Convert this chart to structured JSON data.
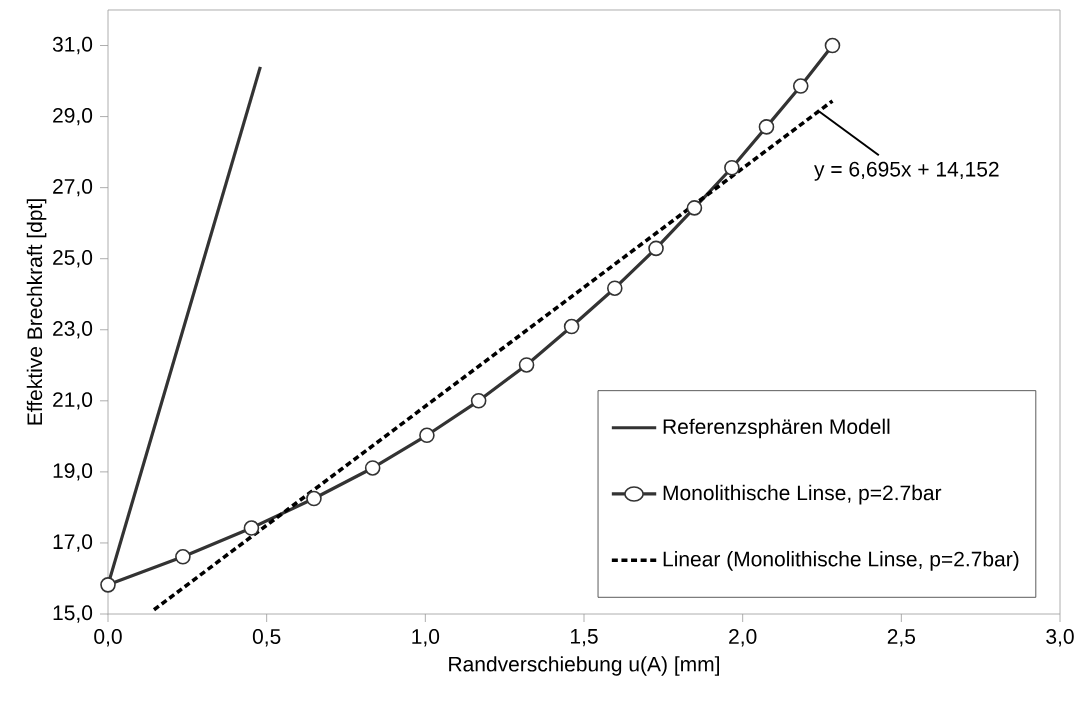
{
  "chart_data": {
    "type": "line",
    "xlabel": "Randverschiebung u(A) [mm]",
    "ylabel": "Effektive Brechkraft [dpt]",
    "xlim": [
      0,
      3
    ],
    "ylim": [
      15,
      32
    ],
    "xticks": [
      {
        "value": 0,
        "label": "0,0"
      },
      {
        "value": 0.5,
        "label": "0,5"
      },
      {
        "value": 1,
        "label": "1,0"
      },
      {
        "value": 1.5,
        "label": "1,5"
      },
      {
        "value": 2,
        "label": "2,0"
      },
      {
        "value": 2.5,
        "label": "2,5"
      },
      {
        "value": 3,
        "label": "3,0"
      }
    ],
    "yticks": [
      {
        "value": 15,
        "label": "15,0"
      },
      {
        "value": 17,
        "label": "17,0"
      },
      {
        "value": 19,
        "label": "19,0"
      },
      {
        "value": 21,
        "label": "21,0"
      },
      {
        "value": 23,
        "label": "23,0"
      },
      {
        "value": 25,
        "label": "25,0"
      },
      {
        "value": 27,
        "label": "27,0"
      },
      {
        "value": 29,
        "label": "29,0"
      },
      {
        "value": 31,
        "label": "31,0"
      }
    ],
    "grid": false,
    "legend": "bottom right",
    "series": [
      {
        "name": "Referenzsphären Modell",
        "color": "#333333",
        "line_style": "solid",
        "x": [
          0,
          0.48
        ],
        "values": [
          15.82,
          30.4
        ]
      },
      {
        "name": "Monolithische Linse, p=2.7bar",
        "color": "#333333",
        "marker": "circle",
        "line_style": "solid",
        "x": [
          0,
          0.236,
          0.452,
          0.649,
          0.834,
          1.005,
          1.168,
          1.319,
          1.461,
          1.597,
          1.727,
          1.848,
          1.966,
          2.075,
          2.183,
          2.283
        ],
        "values": [
          15.82,
          16.61,
          17.42,
          18.25,
          19.11,
          20.03,
          21.0,
          22.01,
          23.09,
          24.17,
          25.29,
          26.43,
          27.56,
          28.71,
          29.86,
          31.0
        ]
      },
      {
        "name": "Linear (Monolithische Linse, p=2.7bar)",
        "color": "#000000",
        "line_style": "dashed",
        "x": [
          0.145,
          2.283
        ],
        "values": [
          15.12,
          29.44
        ]
      }
    ],
    "annotations": [
      {
        "text": "y = 6,695x + 14,152",
        "x": 2.24,
        "y": 29.15
      }
    ]
  }
}
